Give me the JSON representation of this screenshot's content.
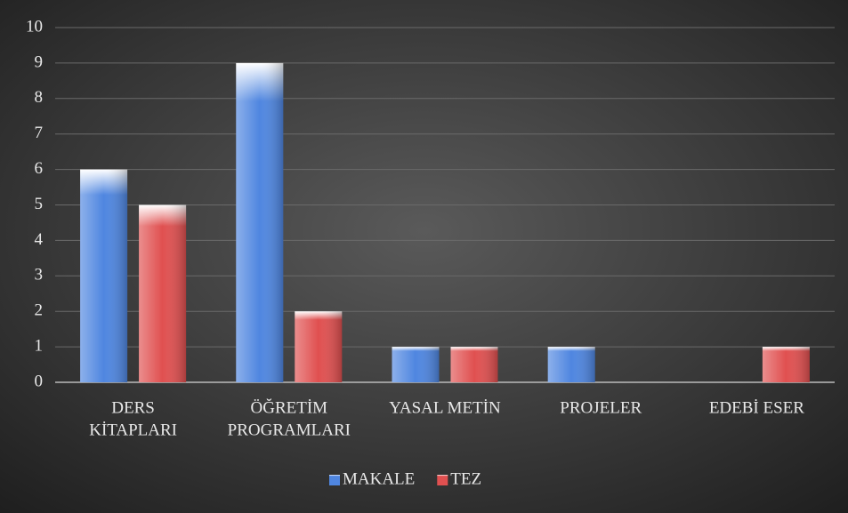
{
  "chart_data": {
    "type": "bar",
    "categories": [
      [
        "DERS",
        "KİTAPLARI"
      ],
      [
        "ÖĞRETİM",
        "PROGRAMLARI"
      ],
      [
        "YASAL METİN"
      ],
      [
        "PROJELER"
      ],
      [
        "EDEBİ ESER"
      ]
    ],
    "series": [
      {
        "name": "MAKALE",
        "color": "#4f86e0",
        "values": [
          6,
          9,
          1,
          1,
          0
        ]
      },
      {
        "name": "TEZ",
        "color": "#e05050",
        "values": [
          5,
          2,
          1,
          0,
          1
        ]
      }
    ],
    "ylim": [
      0,
      10
    ],
    "yticks": [
      0,
      1,
      2,
      3,
      4,
      5,
      6,
      7,
      8,
      9,
      10
    ],
    "grid": true,
    "legend": "bottom"
  }
}
